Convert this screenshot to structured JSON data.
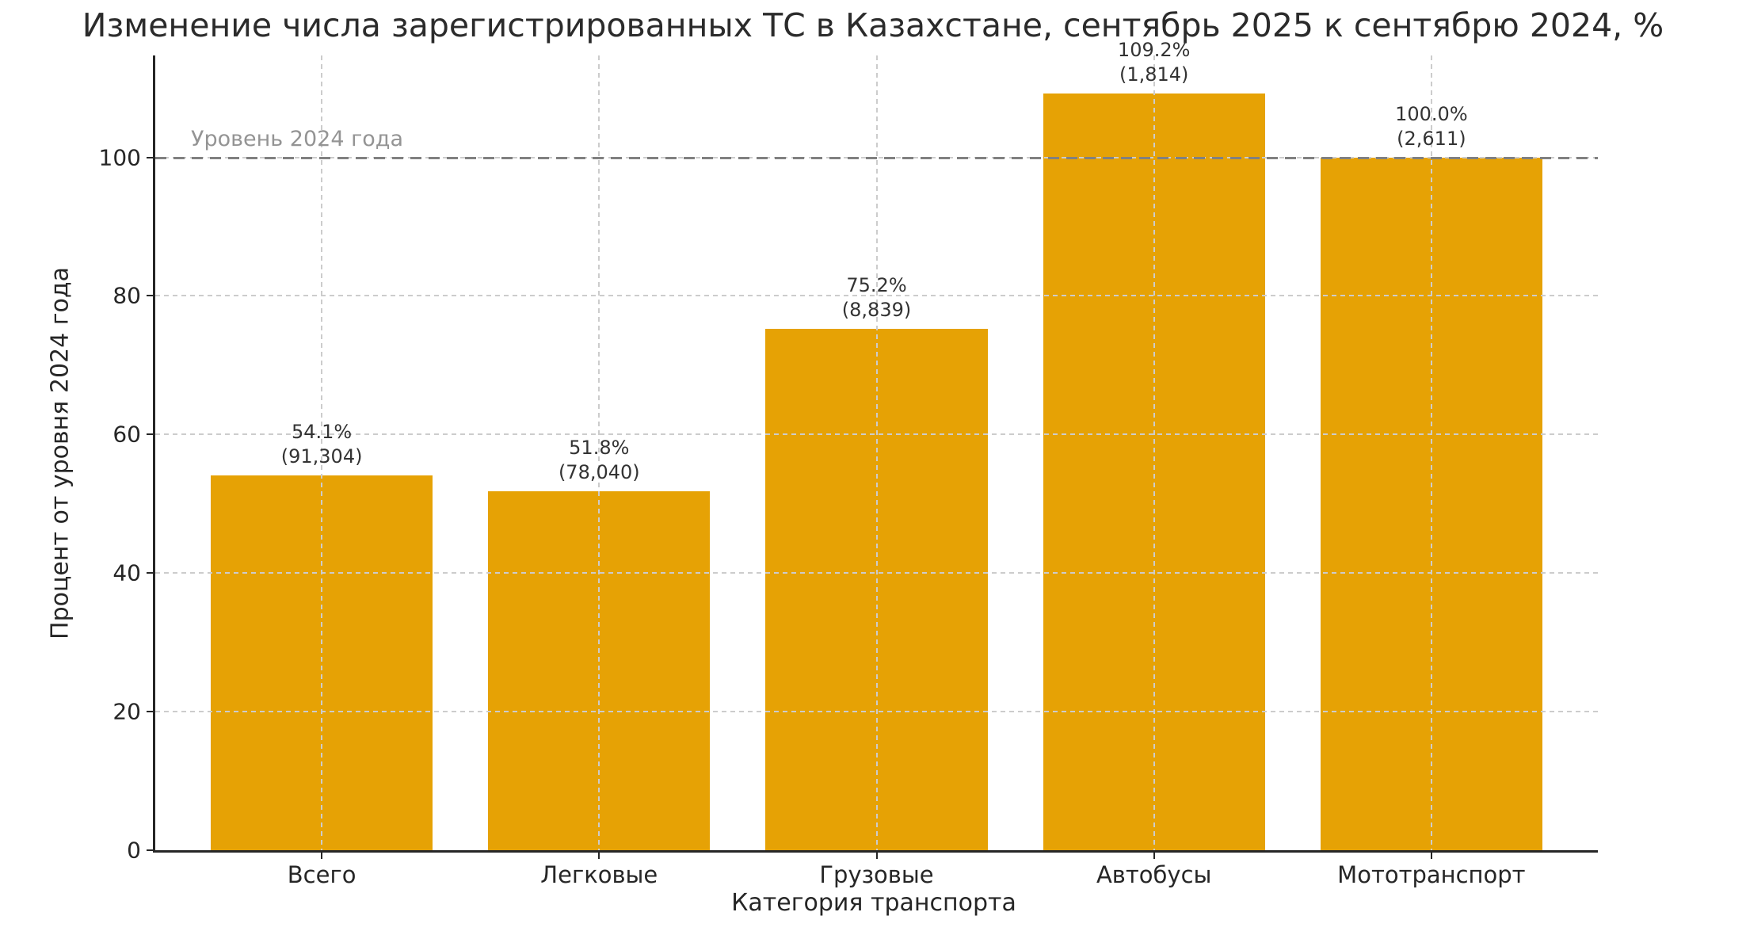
{
  "chart_data": {
    "type": "bar",
    "title": "Изменение числа зарегистрированных ТС в Казахстане, сентябрь 2025 к сентябрю 2024, %",
    "xlabel": "Категория транспорта",
    "ylabel": "Процент от уровня 2024 года",
    "categories": [
      "Всего",
      "Легковые",
      "Грузовые",
      "Автобусы",
      "Мототранспорт"
    ],
    "values": [
      54.1,
      51.8,
      75.2,
      109.2,
      100.0
    ],
    "value_labels": [
      "54.1%",
      "51.8%",
      "75.2%",
      "109.2%",
      "100.0%"
    ],
    "count_labels": [
      "(91,304)",
      "(78,040)",
      "(8,839)",
      "(1,814)",
      "(2,611)"
    ],
    "yticks": [
      0,
      20,
      40,
      60,
      80,
      100
    ],
    "ylim": [
      0,
      114.7
    ],
    "grid": true,
    "legend": false,
    "reference_line": {
      "y": 100,
      "label": "Уровень 2024 года"
    },
    "colors": {
      "bar": "#E6A205",
      "grid": "#cccccc",
      "reference": "#808080",
      "text": "#262626",
      "muted_text": "#949494"
    }
  }
}
